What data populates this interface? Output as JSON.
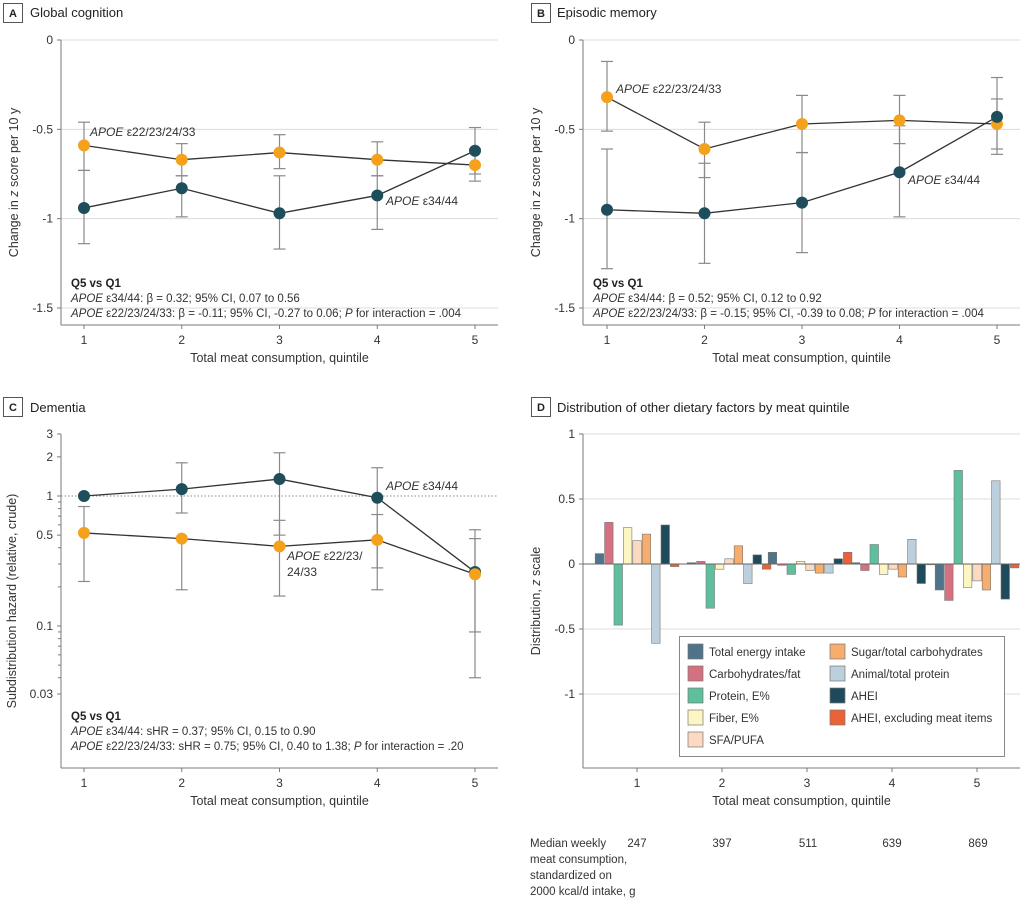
{
  "colors": {
    "apoe34": "#1e4d5c",
    "apoe22": "#f5a11c",
    "line": "#333333",
    "errorbar": "#8a8a8a",
    "grid": "#dcdcdc",
    "axis": "#7a7a7a"
  },
  "chart_data": [
    {
      "id": "A",
      "type": "line",
      "tag": "A",
      "title": "Global cognition",
      "xlabel": "Total meat consumption, quintile",
      "ylabel": "Change in z score per 10 y",
      "x": [
        1,
        2,
        3,
        4,
        5
      ],
      "xticks": [
        "1",
        "2",
        "3",
        "4",
        "5"
      ],
      "ylim": [
        -1.6,
        0
      ],
      "yticks": [
        0,
        -0.5,
        -1,
        -1.5
      ],
      "ytick_labels": [
        "0",
        "-0.5",
        "-1",
        "-1.5"
      ],
      "grid": true,
      "series": [
        {
          "name": "APOE ε22/23/24/33",
          "color_key": "apoe22",
          "values": [
            -0.59,
            -0.67,
            -0.63,
            -0.67,
            -0.7
          ],
          "ci_low": [
            -0.73,
            -0.76,
            -0.72,
            -0.76,
            -0.79
          ],
          "ci_high": [
            -0.46,
            -0.58,
            -0.53,
            -0.57,
            -0.61
          ]
        },
        {
          "name": "APOE ε34/44",
          "color_key": "apoe34",
          "values": [
            -0.94,
            -0.83,
            -0.97,
            -0.87,
            -0.62
          ],
          "ci_low": [
            -1.14,
            -0.99,
            -1.17,
            -1.06,
            -0.75
          ],
          "ci_high": [
            -0.73,
            -0.76,
            -0.76,
            -0.76,
            -0.49
          ]
        }
      ],
      "annotations": [
        {
          "text_italic": "APOE",
          "text": " ε22/23/24/33",
          "near": "series0-point0"
        },
        {
          "text_italic": "APOE",
          "text": " ε34/44",
          "near": "series1-point3"
        }
      ],
      "stats": {
        "heading": "Q5 vs Q1",
        "line1_italic": "APOE",
        "line1": " ε34/44: β = 0.32; 95% CI, 0.07 to 0.56",
        "line2_italic": "APOE",
        "line2a": " ε22/23/24/33: β = -0.11; 95% CI, -0.27 to 0.06; ",
        "line2_p": "P",
        "line2b": " for interaction = .004"
      }
    },
    {
      "id": "B",
      "type": "line",
      "tag": "B",
      "title": "Episodic memory",
      "xlabel": "Total meat consumption, quintile",
      "ylabel": "Change in z score per 10 y",
      "x": [
        1,
        2,
        3,
        4,
        5
      ],
      "xticks": [
        "1",
        "2",
        "3",
        "4",
        "5"
      ],
      "ylim": [
        -1.6,
        0
      ],
      "yticks": [
        0,
        -0.5,
        -1,
        -1.5
      ],
      "ytick_labels": [
        "0",
        "-0.5",
        "-1",
        "-1.5"
      ],
      "grid": true,
      "series": [
        {
          "name": "APOE ε22/23/24/33",
          "color_key": "apoe22",
          "values": [
            -0.32,
            -0.61,
            -0.47,
            -0.45,
            -0.47
          ],
          "ci_low": [
            -0.51,
            -0.77,
            -0.63,
            -0.58,
            -0.61
          ],
          "ci_high": [
            -0.12,
            -0.46,
            -0.31,
            -0.31,
            -0.33
          ]
        },
        {
          "name": "APOE ε34/44",
          "color_key": "apoe34",
          "values": [
            -0.95,
            -0.97,
            -0.91,
            -0.74,
            -0.43
          ],
          "ci_low": [
            -1.28,
            -1.25,
            -1.19,
            -0.99,
            -0.64
          ],
          "ci_high": [
            -0.61,
            -0.69,
            -0.63,
            -0.48,
            -0.21
          ]
        }
      ],
      "annotations": [
        {
          "text_italic": "APOE",
          "text": " ε22/23/24/33",
          "near": "series0-point0"
        },
        {
          "text_italic": "APOE",
          "text": " ε34/44",
          "near": "series1-point3"
        }
      ],
      "stats": {
        "heading": "Q5 vs Q1",
        "line1_italic": "APOE",
        "line1": " ε34/44: β = 0.52; 95% CI, 0.12 to 0.92",
        "line2_italic": "APOE",
        "line2a": " ε22/23/24/33: β = -0.15; 95% CI, -0.39 to 0.08; ",
        "line2_p": "P",
        "line2b": " for interaction = .004"
      }
    },
    {
      "id": "C",
      "type": "line",
      "tag": "C",
      "title": "Dementia",
      "xlabel": "Total meat consumption, quintile",
      "ylabel": "Subdistribution hazard (relative, crude)",
      "yscale": "log",
      "x": [
        1,
        2,
        3,
        4,
        5
      ],
      "xticks": [
        "1",
        "2",
        "3",
        "4",
        "5"
      ],
      "ylim": [
        0.01,
        3
      ],
      "yticks": [
        3,
        2,
        1,
        0.5,
        0.1,
        0.03
      ],
      "ytick_labels": [
        "3",
        "2",
        "1",
        "0.5",
        "0.1",
        "0.03"
      ],
      "reference_line": 1,
      "series": [
        {
          "name": "APOE ε34/44",
          "color_key": "apoe34",
          "values": [
            1.0,
            1.13,
            1.35,
            0.97,
            0.26
          ],
          "ci_low": [
            null,
            0.74,
            0.5,
            0.28,
            0.09
          ],
          "ci_high": [
            null,
            1.8,
            2.15,
            1.65,
            0.55
          ]
        },
        {
          "name": "APOE ε22/23/24/33",
          "color_key": "apoe22",
          "values": [
            0.52,
            0.47,
            0.41,
            0.46,
            0.25
          ],
          "ci_low": [
            0.22,
            0.19,
            0.17,
            0.19,
            0.04
          ],
          "ci_high": [
            0.83,
            0.46,
            0.65,
            0.72,
            0.47
          ]
        }
      ],
      "annotations": [
        {
          "text_italic": "APOE",
          "text": " ε34/44",
          "near": "series0-point3"
        },
        {
          "text_italic": "APOE",
          "text": " ε22/23/",
          "text_line2": "24/33",
          "near": "series1-point2"
        }
      ],
      "stats": {
        "heading": "Q5 vs Q1",
        "line1_italic": "APOE",
        "line1": " ε34/44: sHR = 0.37; 95% CI, 0.15 to 0.90",
        "line2_italic": "APOE",
        "line2a": " ε22/23/24/33: sHR = 0.75; 95% CI, 0.40 to 1.38; ",
        "line2_p": "P",
        "line2b": " for interaction = .20"
      }
    },
    {
      "id": "D",
      "type": "bar",
      "tag": "D",
      "title": "Distribution of other dietary factors by meat quintile",
      "xlabel": "Total meat consumption, quintile",
      "ylabel": "Distribution, z scale",
      "categories": [
        "1",
        "2",
        "3",
        "4",
        "5"
      ],
      "ylim": [
        -1.5,
        1
      ],
      "yticks": [
        1,
        0.5,
        0,
        -0.5,
        -1
      ],
      "ytick_labels": [
        "1",
        "0.5",
        "0",
        "-0.5",
        "-1"
      ],
      "grid": true,
      "legend_position": "bottom-right",
      "series": [
        {
          "name": "Total energy intake",
          "color": "#4f7489",
          "values": [
            0.08,
            0.01,
            0.09,
            0.01,
            -0.2
          ]
        },
        {
          "name": "Carbohydrates/fat",
          "color": "#d4707f",
          "values": [
            0.32,
            0.02,
            -0.01,
            -0.05,
            -0.28
          ]
        },
        {
          "name": "Protein, E%",
          "color": "#5dbf9c",
          "values": [
            -0.47,
            -0.34,
            -0.08,
            0.15,
            0.72
          ]
        },
        {
          "name": "Fiber, E%",
          "color": "#fdf6c3",
          "values": [
            0.28,
            -0.04,
            0.02,
            -0.08,
            -0.18
          ]
        },
        {
          "name": "SFA/PUFA",
          "color": "#fcd9c0",
          "values": [
            0.18,
            0.04,
            -0.05,
            -0.04,
            -0.13
          ]
        },
        {
          "name": "Sugar/total carbohydrates",
          "color": "#f6ad6e",
          "values": [
            0.23,
            0.14,
            -0.07,
            -0.1,
            -0.2
          ]
        },
        {
          "name": "Animal/total protein",
          "color": "#bccfdc",
          "values": [
            -0.61,
            -0.15,
            -0.07,
            0.19,
            0.64
          ]
        },
        {
          "name": "AHEI",
          "color": "#1e4a5c",
          "values": [
            0.3,
            0.07,
            0.04,
            -0.15,
            -0.27
          ]
        },
        {
          "name": "AHEI, excluding meat items",
          "color": "#ea6238",
          "values": [
            -0.02,
            -0.04,
            0.09,
            0.0,
            -0.03
          ]
        }
      ],
      "median_row": {
        "label_lines": [
          "Median weekly",
          "meat consumption,",
          "standardized on",
          "2000 kcal/d intake, g"
        ],
        "values": [
          "247",
          "397",
          "511",
          "639",
          "869"
        ]
      }
    }
  ]
}
